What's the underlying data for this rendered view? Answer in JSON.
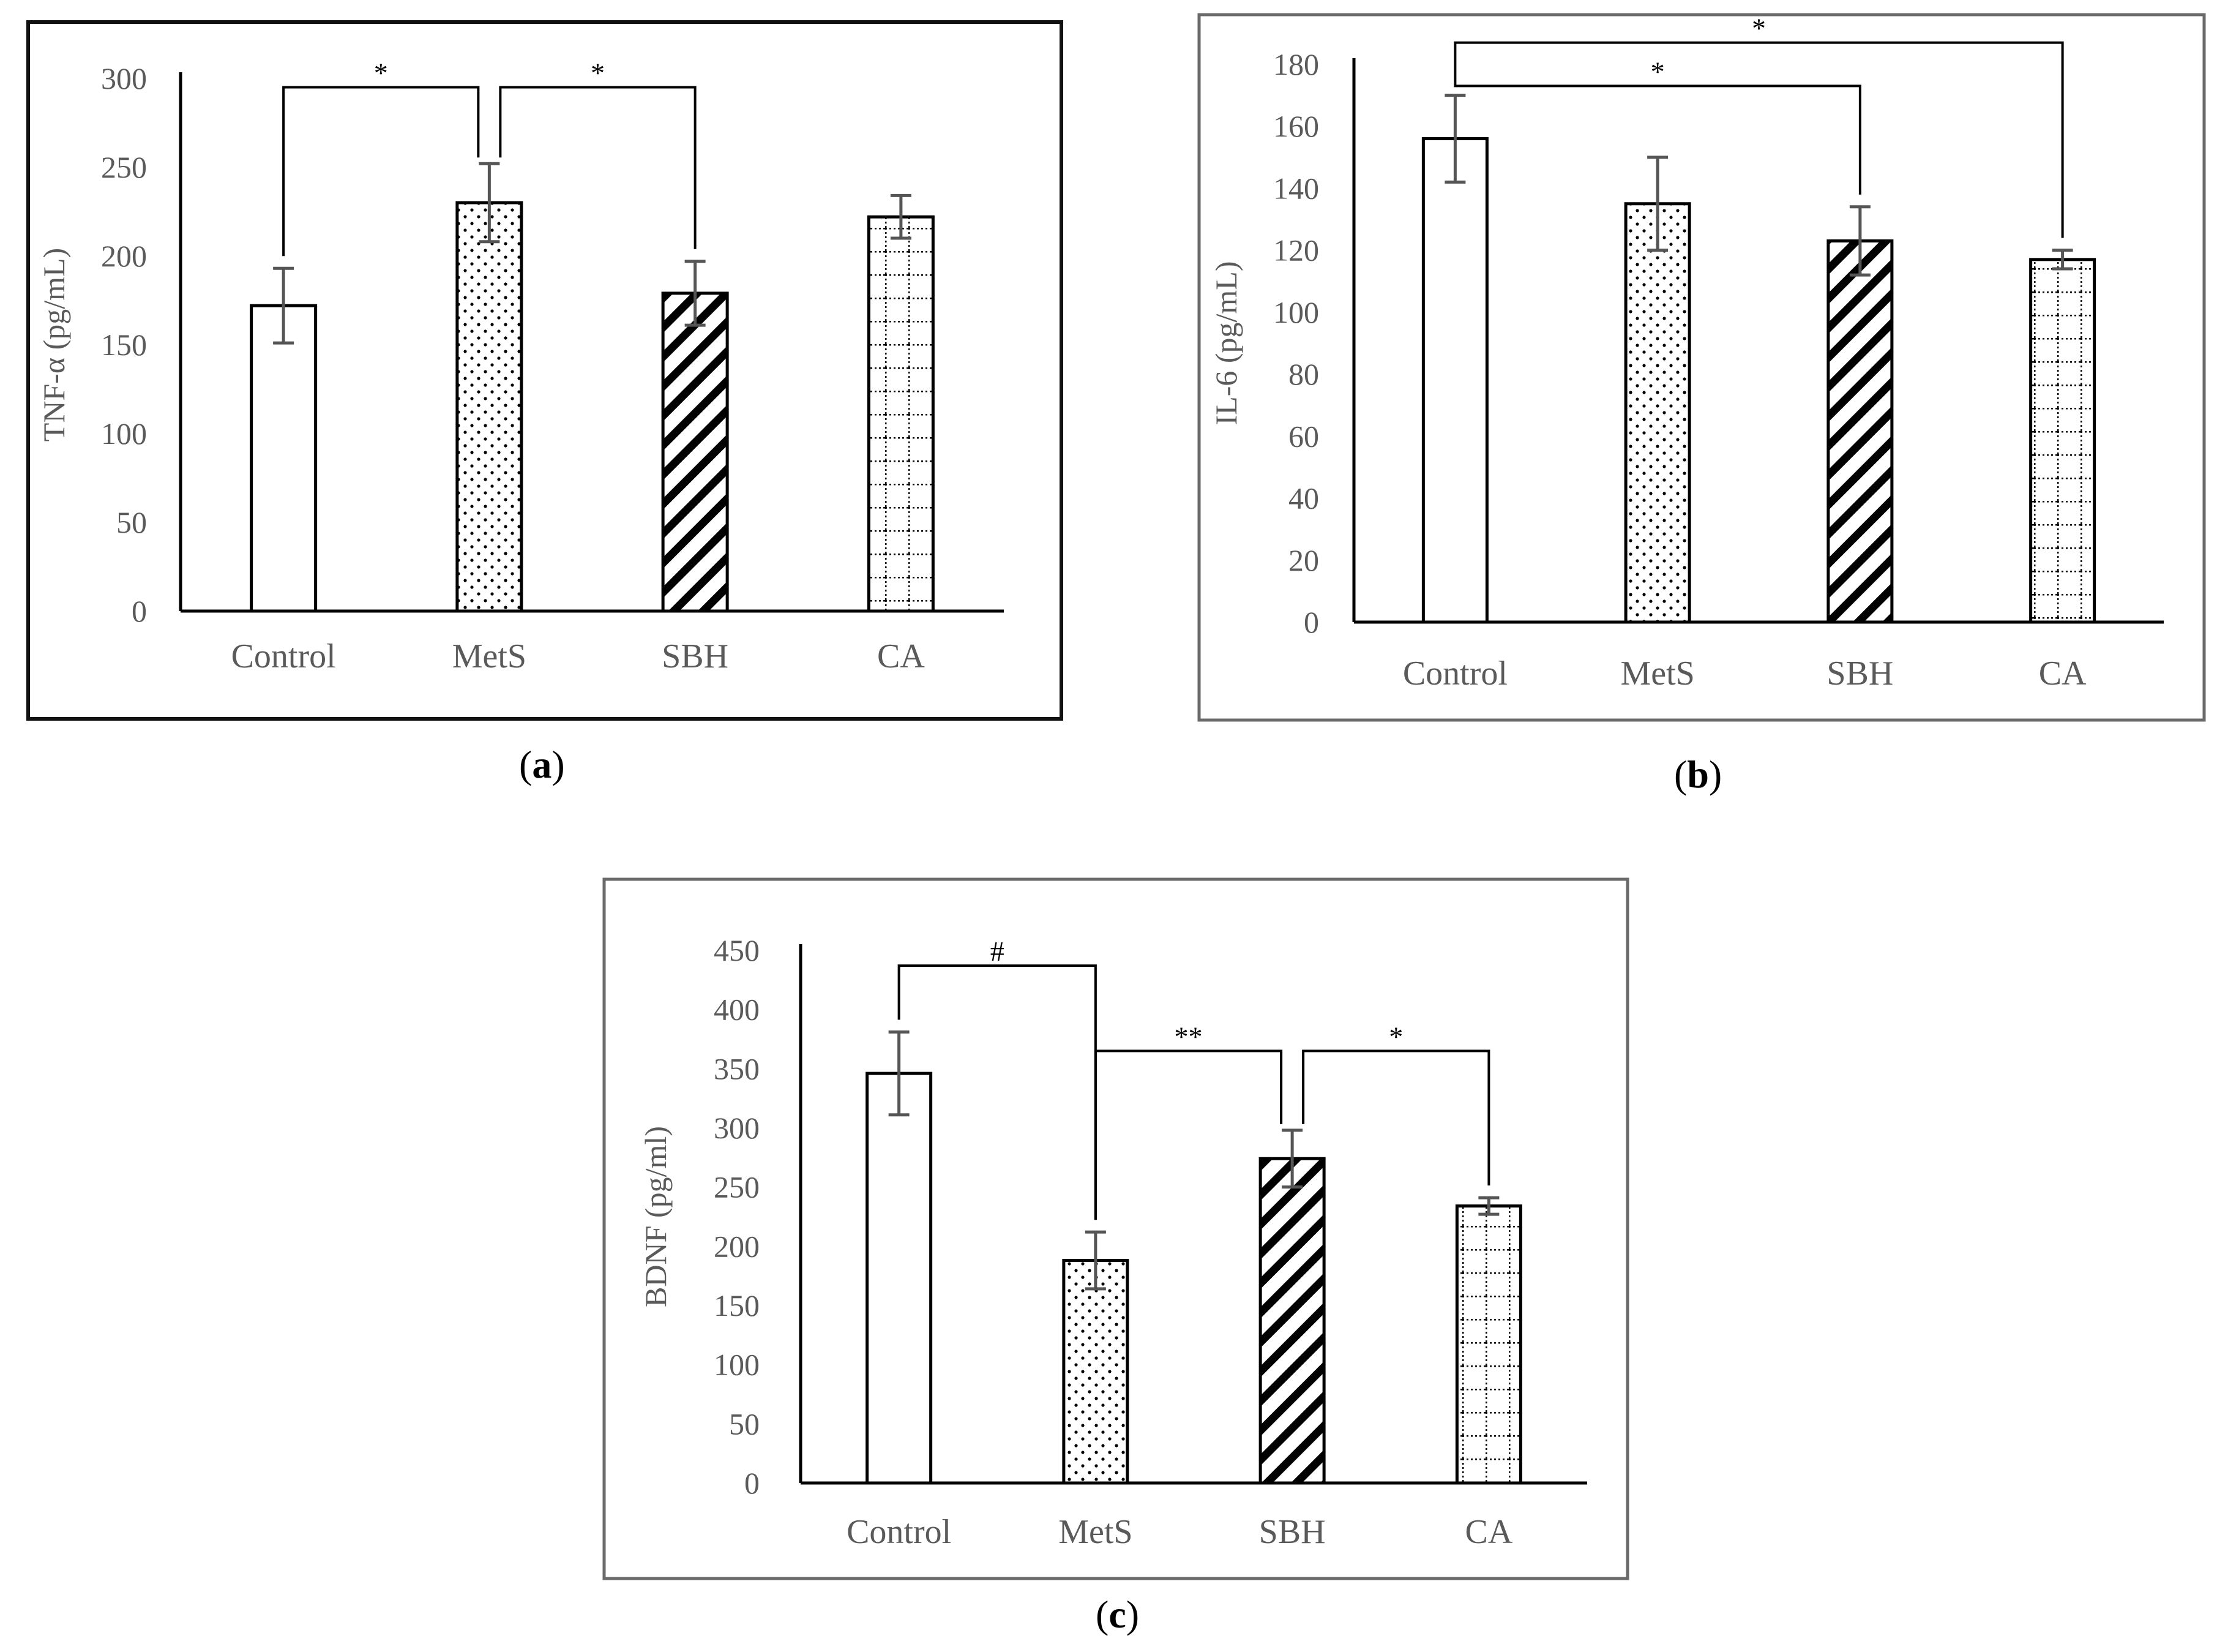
{
  "captions": {
    "a": "a",
    "b": "b",
    "c": "c"
  },
  "chart_data": [
    {
      "id": "a",
      "type": "bar",
      "title": "",
      "xlabel": "",
      "ylabel": "TNF-α (pg/mL)",
      "ylim": [
        0,
        300
      ],
      "yticks": [
        0,
        50,
        100,
        150,
        200,
        250,
        300
      ],
      "categories": [
        "Control",
        "MetS",
        "SBH",
        "CA"
      ],
      "patterns": [
        "none",
        "dots",
        "diagonal",
        "grid"
      ],
      "values": [
        172,
        230,
        179,
        222
      ],
      "errors": [
        21,
        22,
        18,
        12
      ],
      "significance": [
        {
          "from": 0,
          "to": 1,
          "label": "*",
          "level": 295
        },
        {
          "from": 1,
          "to": 2,
          "label": "*",
          "level": 295
        }
      ]
    },
    {
      "id": "b",
      "type": "bar",
      "title": "",
      "xlabel": "",
      "ylabel": "IL-6 (pg/mL)",
      "ylim": [
        0,
        180
      ],
      "yticks": [
        0,
        20,
        40,
        60,
        80,
        100,
        120,
        140,
        160,
        180
      ],
      "categories": [
        "Control",
        "MetS",
        "SBH",
        "CA"
      ],
      "patterns": [
        "none",
        "dots",
        "diagonal",
        "grid"
      ],
      "values": [
        156,
        135,
        123,
        117
      ],
      "errors": [
        14,
        15,
        11,
        3
      ],
      "significance": [
        {
          "from": 0,
          "to": 2,
          "label": "*",
          "level": 173
        },
        {
          "from": 0,
          "to": 3,
          "label": "*",
          "level": 187
        }
      ]
    },
    {
      "id": "c",
      "type": "bar",
      "title": "",
      "xlabel": "",
      "ylabel": "BDNF (pg/ml)",
      "ylim": [
        0,
        450
      ],
      "yticks": [
        0,
        50,
        100,
        150,
        200,
        250,
        300,
        350,
        400,
        450
      ],
      "categories": [
        "Control",
        "MetS",
        "SBH",
        "CA"
      ],
      "patterns": [
        "none",
        "dots",
        "diagonal",
        "grid"
      ],
      "values": [
        346,
        188,
        274,
        234
      ],
      "errors": [
        35,
        24,
        24,
        7
      ],
      "significance": [
        {
          "from": 0,
          "to": 1,
          "label": "#",
          "level": 437
        },
        {
          "from": 1,
          "to": 2,
          "label": "**",
          "level": 365
        },
        {
          "from": 2,
          "to": 3,
          "label": "*",
          "level": 365
        }
      ]
    }
  ]
}
